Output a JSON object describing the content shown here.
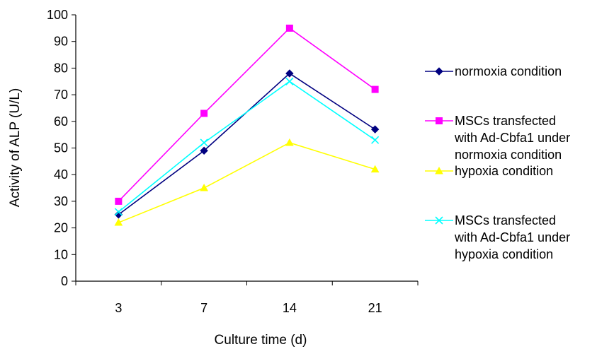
{
  "chart_data": {
    "type": "line",
    "title": "",
    "xlabel": "Culture time (d)",
    "ylabel": "Activity of ALP (U/L)",
    "categories": [
      "3",
      "7",
      "14",
      "21"
    ],
    "ylim": [
      0,
      100
    ],
    "yticks": [
      0,
      10,
      20,
      30,
      40,
      50,
      60,
      70,
      80,
      90,
      100
    ],
    "grid": false,
    "legend_position": "right",
    "series": [
      {
        "name": "normoxia condition",
        "name_lines": [
          "normoxia condition"
        ],
        "values": [
          25,
          49,
          78,
          57
        ],
        "color": "#000080",
        "marker": "diamond"
      },
      {
        "name": "MSCs transfected with Ad-Cbfa1 under normoxia condition",
        "name_lines": [
          "MSCs transfected",
          "with Ad-Cbfa1 under",
          "normoxia condition"
        ],
        "values": [
          30,
          63,
          95,
          72
        ],
        "color": "#ff00ff",
        "marker": "square"
      },
      {
        "name": "hypoxia  condition",
        "name_lines": [
          "hypoxia  condition"
        ],
        "values": [
          22,
          35,
          52,
          42
        ],
        "color": "#ffff00",
        "marker": "triangle"
      },
      {
        "name": "MSCs transfected with Ad-Cbfa1 under hypoxia condition",
        "name_lines": [
          "MSCs transfected",
          "with Ad-Cbfa1 under",
          "hypoxia condition"
        ],
        "values": [
          26,
          52,
          75,
          53
        ],
        "color": "#00ffff",
        "marker": "x"
      }
    ]
  }
}
